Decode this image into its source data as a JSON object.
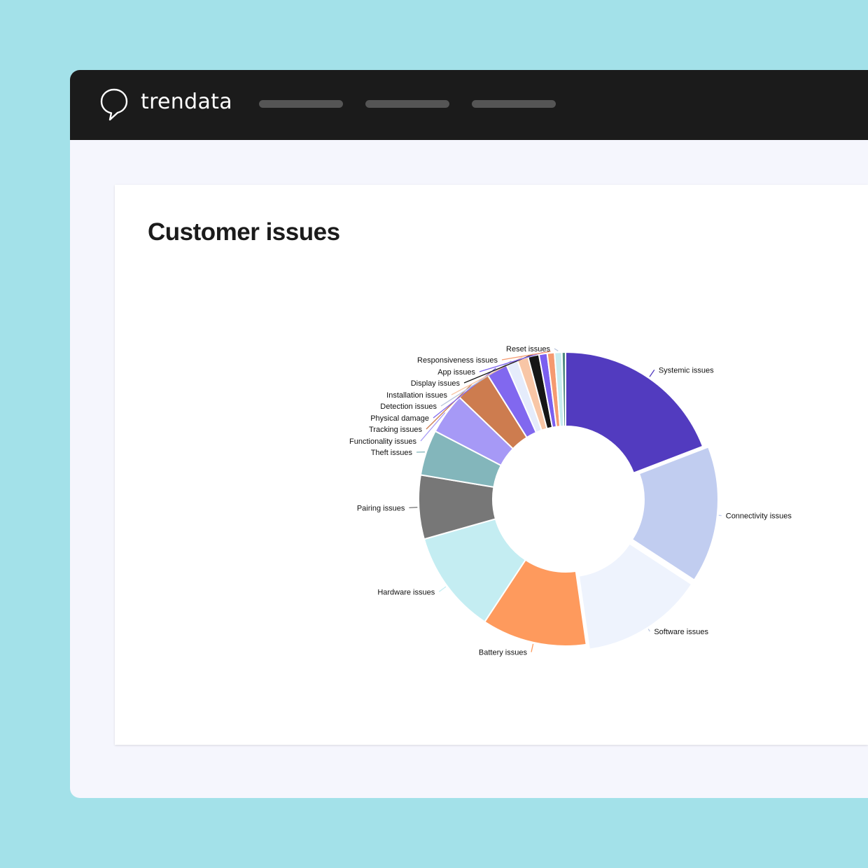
{
  "app": {
    "brand": "trendata",
    "nav_items": [
      "",
      "",
      ""
    ]
  },
  "card": {
    "title": "Customer issues"
  },
  "chart_data": {
    "type": "pie",
    "donut": true,
    "title": "Customer issues",
    "legend": "none",
    "slices": [
      {
        "label": "Systemic issues",
        "value": 19.1,
        "color": "#523bbf"
      },
      {
        "label": "Connectivity issues",
        "value": 15.0,
        "color": "#c1cdf0"
      },
      {
        "label": "Software issues",
        "value": 13.5,
        "color": "#eef3fd"
      },
      {
        "label": "Battery issues",
        "value": 11.5,
        "color": "#fe9a5d"
      },
      {
        "label": "Hardware issues",
        "value": 11.3,
        "color": "#c4edf2"
      },
      {
        "label": "Pairing issues",
        "value": 7.0,
        "color": "#777777"
      },
      {
        "label": "Theft issues",
        "value": 5.0,
        "color": "#83b6bb"
      },
      {
        "label": "Functionality issues",
        "value": 4.5,
        "color": "#a699f6"
      },
      {
        "label": "Tracking issues",
        "value": 3.9,
        "color": "#cd7c4f"
      },
      {
        "label": "Physical damage",
        "value": 2.3,
        "color": "#8168ef"
      },
      {
        "label": "Detection issues",
        "value": 1.3,
        "color": "#e5ecfb"
      },
      {
        "label": "Installation issues",
        "value": 1.2,
        "color": "#f8c6a6"
      },
      {
        "label": "Display issues",
        "value": 1.2,
        "color": "#161616"
      },
      {
        "label": "App issues",
        "value": 0.9,
        "color": "#7a5ff0"
      },
      {
        "label": "Responsiveness issues",
        "value": 0.8,
        "color": "#f59a70"
      },
      {
        "label": "Reset issues",
        "value": 0.8,
        "color": "#c8ecf0"
      },
      {
        "label": "",
        "value": 0.4,
        "color": "#4f8a82"
      }
    ]
  }
}
